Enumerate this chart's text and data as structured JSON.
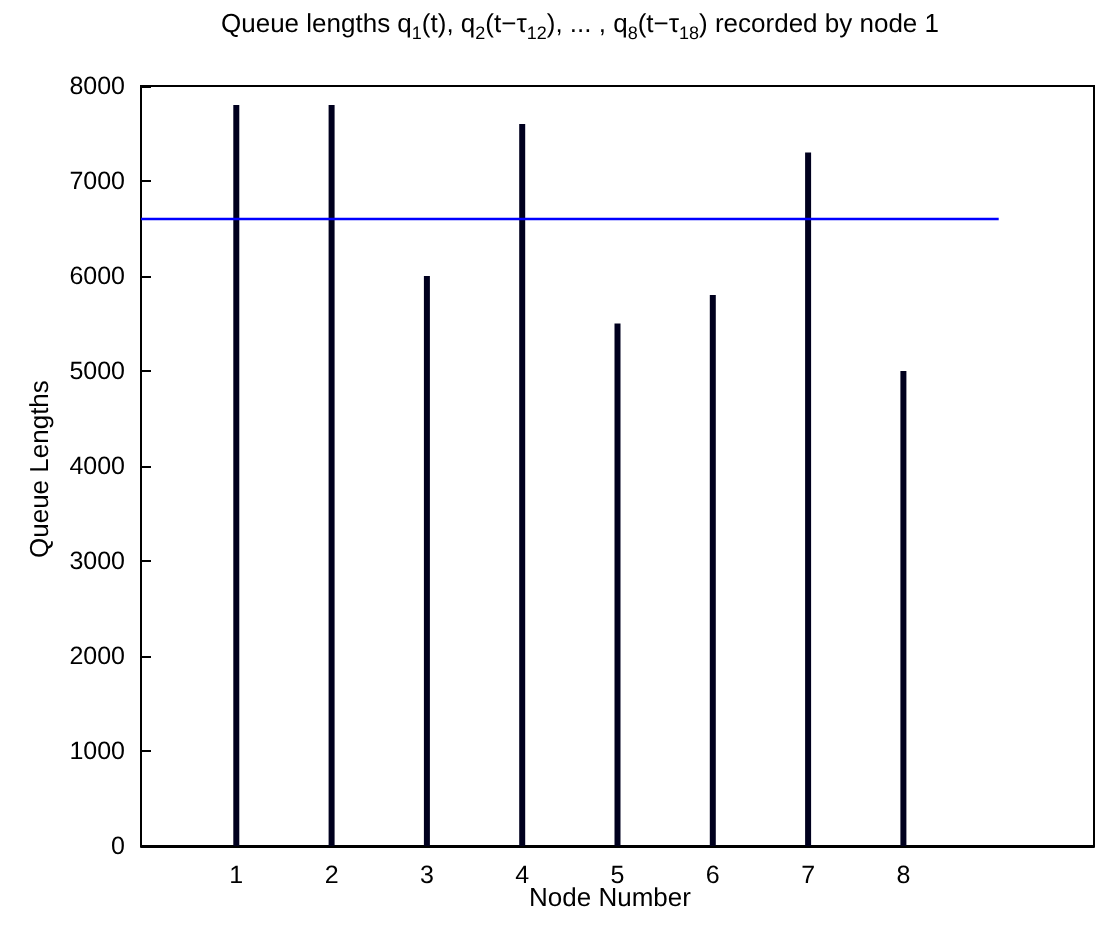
{
  "chart_data": {
    "type": "bar",
    "title": "Queue lengths q$_{1}$(t), q$_{2}$(t−τ$_{12}$), ... ,  q$_{8}$(t−τ$_{18}$) recorded by node 1",
    "xlabel": "Node Number",
    "ylabel": "Queue Lengths",
    "x": [
      1,
      2,
      3,
      4,
      5,
      6,
      7,
      8
    ],
    "series": [
      {
        "color": "#00001e",
        "values": [
          7800,
          7800,
          6000,
          7600,
          5500,
          5800,
          7300,
          5000
        ]
      },
      {
        "type": "line",
        "color": "#0000ff",
        "x": [
          0,
          9
        ],
        "values": [
          6600,
          6600
        ]
      }
    ],
    "xlim": [
      0,
      10
    ],
    "xticks": [
      1,
      2,
      3,
      4,
      5,
      6,
      7,
      8
    ],
    "ylim": [
      0,
      8000
    ],
    "yticks": [
      0,
      1000,
      2000,
      3000,
      4000,
      5000,
      6000,
      7000,
      8000
    ],
    "grid": false,
    "marker": "none",
    "line_style": "solid"
  }
}
